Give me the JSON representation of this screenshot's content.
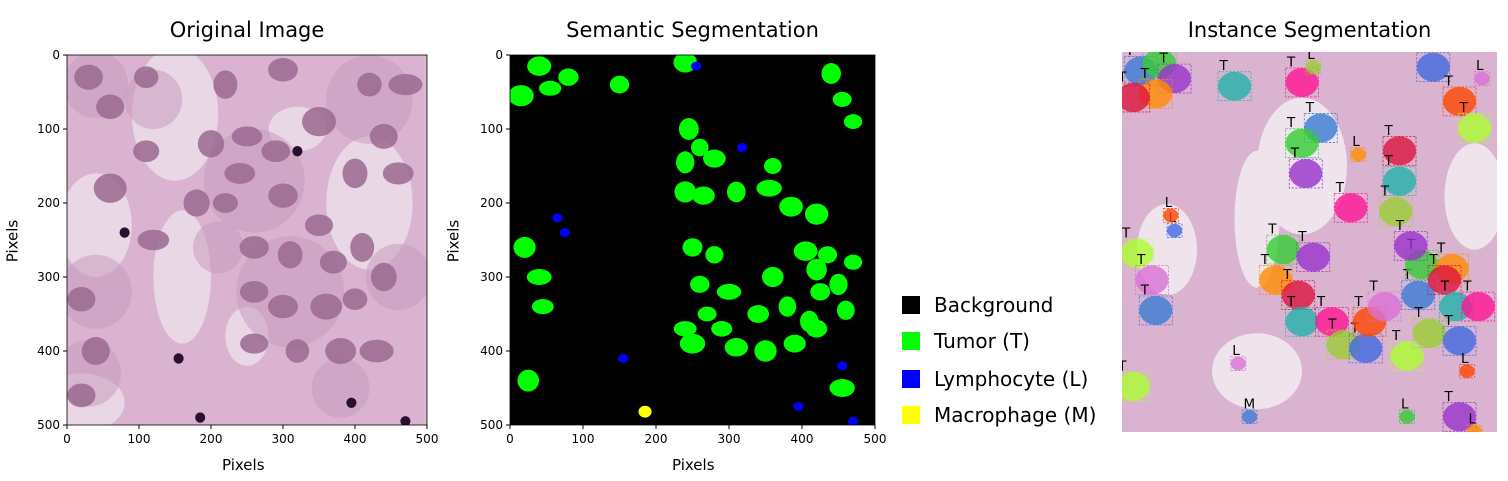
{
  "panels": {
    "original": {
      "title": "Original Image",
      "xlabel": "Pixels",
      "ylabel": "Pixels"
    },
    "semantic": {
      "title": "Semantic Segmentation",
      "xlabel": "Pixels",
      "ylabel": "Pixels"
    },
    "instance": {
      "title": "Instance Segmentation"
    }
  },
  "axis_ticks": {
    "x": [
      "0",
      "100",
      "200",
      "300",
      "400",
      "500"
    ],
    "y": [
      "0",
      "100",
      "200",
      "300",
      "400",
      "500"
    ]
  },
  "legend": [
    {
      "label": "Background",
      "color": "#000000"
    },
    {
      "label": "Tumor (T)",
      "color": "#00ff00"
    },
    {
      "label": "Lymphocyte (L)",
      "color": "#0000ff"
    },
    {
      "label": "Macrophage (M)",
      "color": "#ffff00"
    }
  ],
  "colors": {
    "tissue": "#d9b3cf",
    "nucleus": "#9a6890",
    "background": "#000000",
    "tumor": "#00ff00",
    "lymphocyte": "#0000ff",
    "macrophage": "#ffff00"
  },
  "instance_letters": {
    "tumor": "T",
    "lymphocyte": "L",
    "macrophage": "M"
  }
}
